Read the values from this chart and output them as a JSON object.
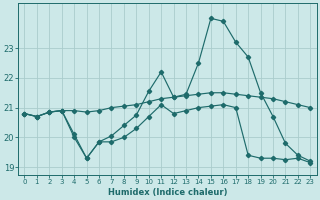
{
  "xlabel": "Humidex (Indice chaleur)",
  "background_color": "#cce8e8",
  "grid_color": "#aacccc",
  "line_color": "#1e6b6b",
  "x_values": [
    0,
    1,
    2,
    3,
    4,
    5,
    6,
    7,
    8,
    9,
    10,
    11,
    12,
    13,
    14,
    15,
    16,
    17,
    18,
    19,
    20,
    21,
    22,
    23
  ],
  "curve_high": [
    20.8,
    20.7,
    20.85,
    20.9,
    20.1,
    19.3,
    19.85,
    20.05,
    20.4,
    20.75,
    21.55,
    22.2,
    21.35,
    21.45,
    22.5,
    24.0,
    23.9,
    23.2,
    22.7,
    21.5,
    20.7,
    19.8,
    19.4,
    19.2
  ],
  "curve_main": [
    20.8,
    20.7,
    20.85,
    20.9,
    20.9,
    20.85,
    20.9,
    21.0,
    21.05,
    21.1,
    21.2,
    21.3,
    21.35,
    21.4,
    21.45,
    21.5,
    21.5,
    21.45,
    21.4,
    21.35,
    21.3,
    21.2,
    21.1,
    21.0
  ],
  "curve_low": [
    20.8,
    20.7,
    20.85,
    20.9,
    20.0,
    19.3,
    19.85,
    19.85,
    20.0,
    20.3,
    20.7,
    21.1,
    20.8,
    20.9,
    21.0,
    21.05,
    21.1,
    21.0,
    19.4,
    19.3,
    19.3,
    19.25,
    19.3,
    19.15
  ],
  "ylim": [
    18.75,
    24.5
  ],
  "yticks": [
    19,
    20,
    21,
    22,
    23
  ],
  "xticks": [
    0,
    1,
    2,
    3,
    4,
    5,
    6,
    7,
    8,
    9,
    10,
    11,
    12,
    13,
    14,
    15,
    16,
    17,
    18,
    19,
    20,
    21,
    22,
    23
  ]
}
